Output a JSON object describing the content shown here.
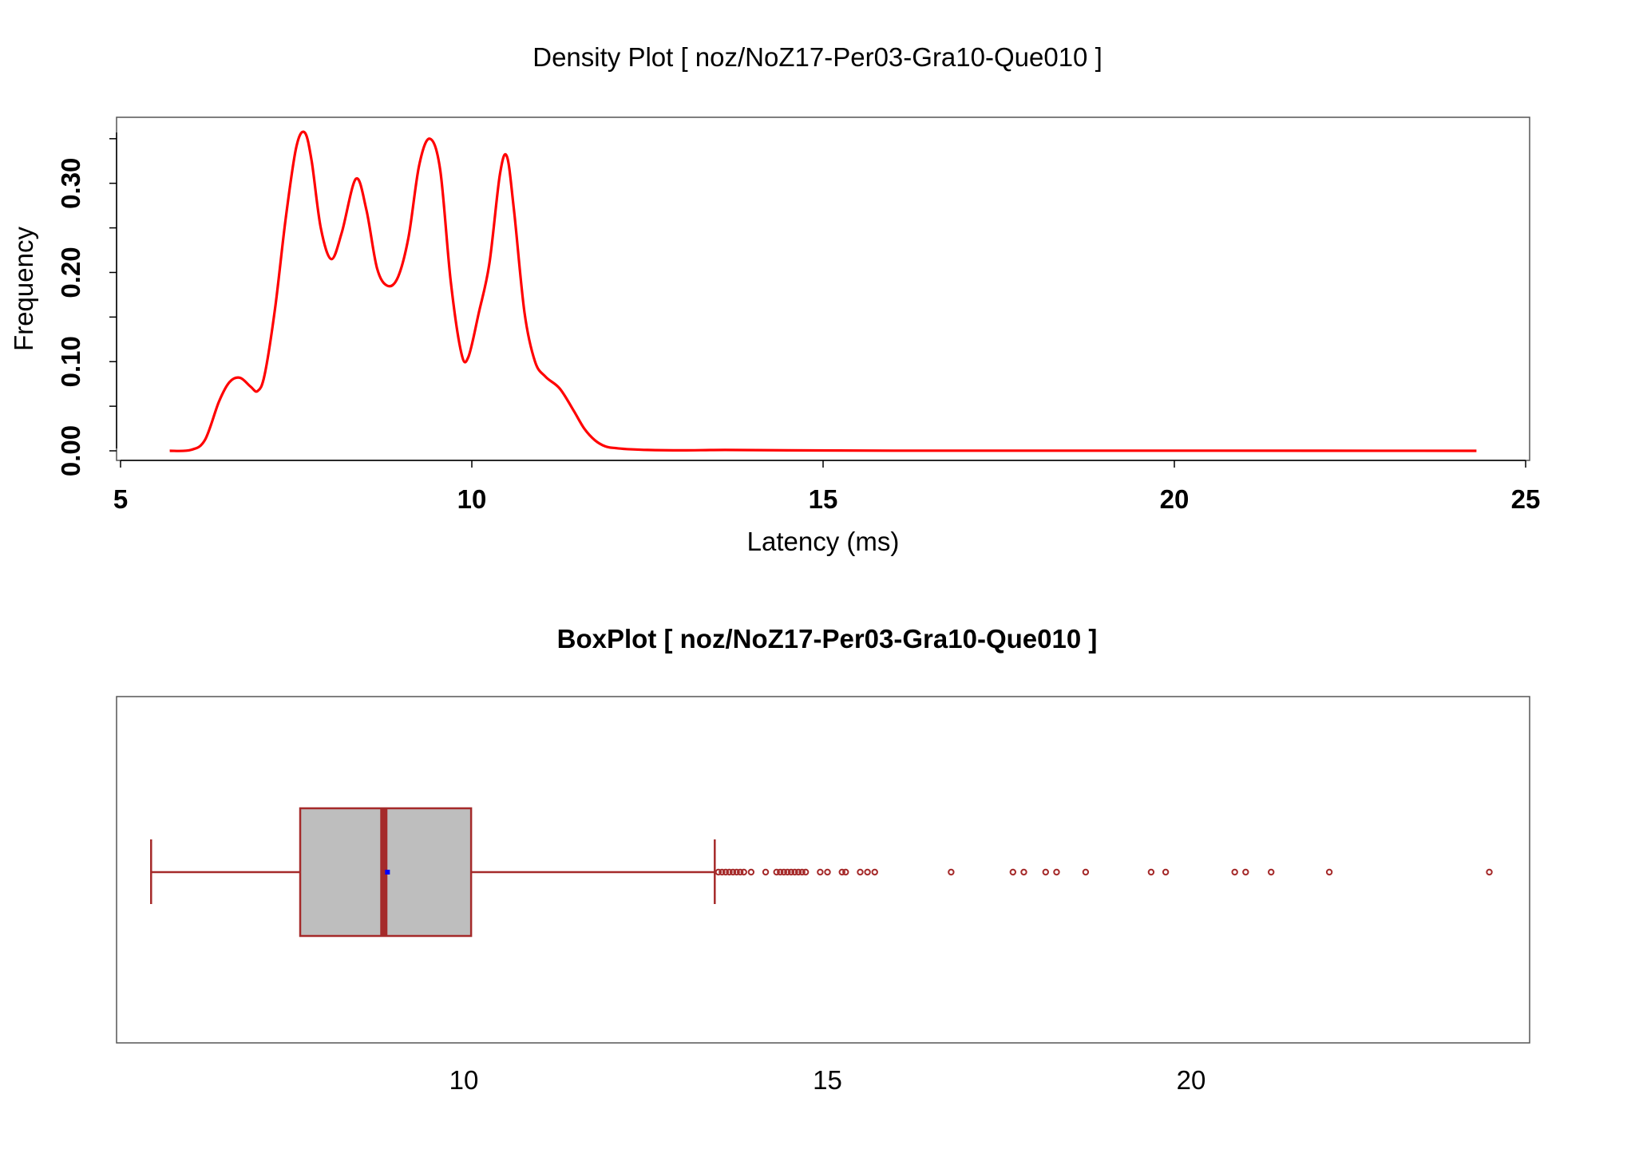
{
  "chart_data": [
    {
      "type": "line",
      "title": "Density Plot [ noz/NoZ17-Per03-Gra10-Que010 ]",
      "xlabel": "Latency (ms)",
      "ylabel": "Frequency",
      "xlim": [
        5,
        25
      ],
      "ylim": [
        0,
        0.35
      ],
      "x_ticks": [
        "5",
        "10",
        "15",
        "20",
        "25"
      ],
      "y_ticks": [
        "0.00",
        "0.10",
        "0.20",
        "0.30"
      ],
      "series": [
        {
          "color": "#ff0000",
          "x": [
            5.7,
            6.0,
            6.2,
            6.4,
            6.55,
            6.7,
            6.85,
            6.95,
            7.05,
            7.2,
            7.35,
            7.5,
            7.62,
            7.72,
            7.85,
            8.0,
            8.15,
            8.35,
            8.5,
            8.65,
            8.8,
            8.95,
            9.1,
            9.25,
            9.4,
            9.55,
            9.7,
            9.85,
            9.95,
            10.1,
            10.25,
            10.4,
            10.5,
            10.6,
            10.75,
            10.9,
            11.05,
            11.25,
            11.45,
            11.6,
            11.75,
            11.9,
            12.05,
            12.2,
            12.5,
            13.0,
            13.6,
            14.5,
            16.0,
            18.0,
            20.0,
            22.0,
            24.3
          ],
          "y": [
            0.0,
            0.001,
            0.012,
            0.055,
            0.077,
            0.082,
            0.072,
            0.067,
            0.085,
            0.16,
            0.26,
            0.34,
            0.357,
            0.325,
            0.25,
            0.215,
            0.245,
            0.305,
            0.27,
            0.205,
            0.185,
            0.195,
            0.24,
            0.32,
            0.35,
            0.315,
            0.19,
            0.11,
            0.105,
            0.155,
            0.21,
            0.31,
            0.33,
            0.27,
            0.155,
            0.1,
            0.083,
            0.07,
            0.045,
            0.025,
            0.012,
            0.005,
            0.003,
            0.002,
            0.001,
            0.0005,
            0.001,
            0.0005,
            0.0002,
            0.0002,
            0.0002,
            0.0001,
            0.0
          ]
        }
      ]
    },
    {
      "type": "box",
      "title": "BoxPlot [ noz/NoZ17-Per03-Gra10-Que010 ]",
      "orientation": "horizontal",
      "x_ticks": [
        "10",
        "15",
        "20"
      ],
      "whisker_low": 5.7,
      "q1": 7.75,
      "median": 8.9,
      "mean": 8.95,
      "q3": 10.1,
      "whisker_high": 13.45,
      "outliers": [
        13.5,
        13.55,
        13.6,
        13.65,
        13.7,
        13.75,
        13.8,
        13.85,
        13.95,
        14.15,
        14.3,
        14.35,
        14.4,
        14.45,
        14.5,
        14.55,
        14.6,
        14.65,
        14.7,
        14.9,
        15.0,
        15.2,
        15.25,
        15.45,
        15.55,
        15.65,
        16.7,
        17.55,
        17.7,
        18.0,
        18.15,
        18.55,
        19.45,
        19.65,
        20.6,
        20.75,
        21.1,
        21.9,
        24.1
      ],
      "box_fill": "#bebebe",
      "line_color": "#a52a2a",
      "mean_color": "#0000ff"
    }
  ]
}
